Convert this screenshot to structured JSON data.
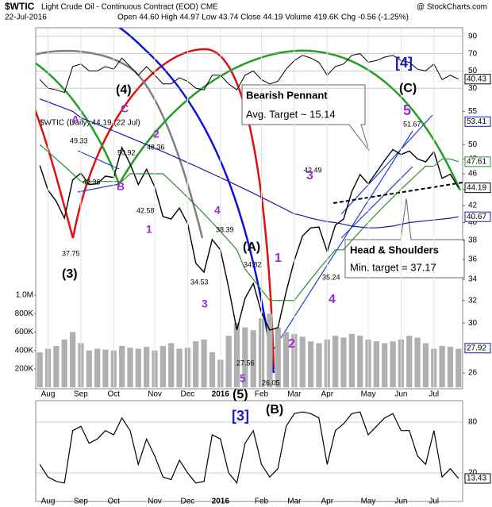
{
  "header": {
    "symbol": "$WTIC",
    "title": "Light Crude Oil - Continuous Contract (EOD) CME",
    "date": "22-Jul-2016",
    "stats": "Open 44.60 High 44.97 Low 43.74 Close 44.19 Volume 419.6K Chg -0.56 (-1.25%)",
    "credit": "@ StockCharts.com",
    "legend": "$WTIC (Daily) 44.19 (22 Jul)"
  },
  "chart_data": {
    "type": "line",
    "log_scale": true,
    "categories": [
      null,
      "Aug",
      null,
      null,
      null,
      "Sep",
      null,
      null,
      null,
      "Oct",
      null,
      null,
      null,
      null,
      "Nov",
      null,
      null,
      null,
      "Dec",
      null,
      null,
      null,
      "2016",
      null,
      null,
      null,
      null,
      "Feb",
      null,
      null,
      null,
      "Mar",
      null,
      null,
      null,
      "Apr",
      null,
      null,
      null,
      null,
      "May",
      null,
      null,
      null,
      "Jun",
      null,
      null,
      null,
      "Jul",
      null,
      null,
      null
    ],
    "series": [
      {
        "color": "#000000",
        "values": [
          47.1,
          43.9,
          42.5,
          40.5,
          45.2,
          46.1,
          44.6,
          44.7,
          45.7,
          45.5,
          49.6,
          47.3,
          44.6,
          46.6,
          44.3,
          40.7,
          40.4,
          41.7,
          39.9,
          35.6,
          34.7,
          38.1,
          37.0,
          33.2,
          29.4,
          32.2,
          33.6,
          30.9,
          29.4,
          29.6,
          32.8,
          35.9,
          38.5,
          39.4,
          39.5,
          36.8,
          39.7,
          40.4,
          43.7,
          45.9,
          44.7,
          46.2,
          47.8,
          49.3,
          48.6,
          49.1,
          48.0,
          47.6,
          49.0,
          45.4,
          45.95,
          44.19
        ]
      },
      {
        "color": "#2e8b2e",
        "values": [
          50,
          49,
          48,
          47,
          46,
          45,
          45,
          45,
          45,
          45,
          45,
          46,
          46,
          46,
          46,
          46,
          45,
          44,
          43,
          42,
          41,
          40,
          39,
          38,
          37,
          35,
          34,
          33,
          32,
          32,
          32,
          32,
          33,
          34,
          35,
          36,
          37,
          37,
          38,
          39,
          40,
          41,
          42,
          43,
          44,
          45,
          46,
          47,
          47,
          48,
          48,
          47.61
        ]
      },
      {
        "color": "#1a1aa6",
        "values": [
          57,
          56.5,
          56,
          55.5,
          55,
          54,
          53.5,
          53,
          52.5,
          52,
          51.5,
          51,
          50.5,
          50,
          49.5,
          49,
          48.5,
          48,
          47.5,
          47,
          46.5,
          46,
          45.5,
          45,
          44.5,
          44,
          43.5,
          43,
          42.5,
          42,
          41.5,
          41,
          40.8,
          40.5,
          40.3,
          40.1,
          40,
          39.8,
          39.6,
          39.5,
          39.4,
          39.4,
          39.5,
          39.6,
          39.8,
          40,
          40.1,
          40.2,
          40.3,
          40.4,
          40.5,
          40.67
        ]
      }
    ],
    "ylim": [
      24.85,
      69.88
    ],
    "yticks": [
      26,
      30,
      32,
      34,
      36,
      38,
      40,
      42,
      44,
      46,
      48,
      50,
      55
    ],
    "markers": [
      {
        "value": 53.41,
        "color": "#1a1aa6"
      },
      {
        "value": 47.61,
        "color": "#2e8b2e"
      },
      {
        "value": 44.19,
        "color": "#000000"
      },
      {
        "value": 40.67,
        "color": "#1a1aa6"
      },
      {
        "value": 27.92,
        "color": "#1a1aa6"
      }
    ],
    "volume": {
      "color": "#b0b0b0",
      "values": [
        380000,
        420000,
        450000,
        520000,
        600000,
        480000,
        400000,
        420000,
        410000,
        400000,
        450000,
        430000,
        420000,
        440000,
        400000,
        450000,
        480000,
        420000,
        430000,
        500000,
        520000,
        380000,
        300000,
        560000,
        700000,
        650000,
        620000,
        750000,
        800000,
        650000,
        600000,
        580000,
        550000,
        500000,
        480000,
        520000,
        560000,
        540000,
        580000,
        560000,
        520000,
        500000,
        480000,
        500000,
        520000,
        560000,
        540000,
        480000,
        420000,
        450000,
        440000,
        419600
      ],
      "ylim": [
        -15000,
        3900000
      ],
      "yticks": [
        {
          "value": 200000,
          "label": "200K"
        },
        {
          "value": 400000,
          "label": "400K"
        },
        {
          "value": 600000,
          "label": "600K"
        },
        {
          "value": 800000,
          "label": "800K"
        },
        {
          "value": 1000000,
          "label": "1.0M"
        }
      ]
    },
    "rsi": {
      "color": "#000000",
      "values": [
        40,
        30,
        28,
        25,
        55,
        58,
        50,
        50,
        55,
        52,
        65,
        55,
        45,
        55,
        45,
        35,
        35,
        42,
        38,
        30,
        28,
        45,
        45,
        35,
        28,
        45,
        50,
        40,
        35,
        38,
        52,
        62,
        68,
        65,
        60,
        45,
        55,
        58,
        68,
        70,
        60,
        62,
        66,
        68,
        62,
        60,
        52,
        50,
        58,
        40,
        45,
        40.43
      ],
      "ylim": [
        20,
        100
      ],
      "yticks": [
        30,
        50,
        70,
        90
      ],
      "marker": 40.43
    },
    "oscillator": {
      "color": "#000000",
      "values": [
        30,
        15,
        10,
        8,
        70,
        75,
        55,
        60,
        70,
        65,
        85,
        70,
        30,
        60,
        40,
        15,
        12,
        35,
        20,
        8,
        10,
        65,
        60,
        20,
        8,
        55,
        70,
        30,
        15,
        25,
        75,
        90,
        92,
        90,
        85,
        30,
        70,
        78,
        90,
        92,
        65,
        75,
        85,
        90,
        70,
        70,
        40,
        30,
        70,
        15,
        25,
        13.43
      ],
      "ylim": [
        -13.75,
        105.3
      ],
      "yticks": [
        20,
        80
      ],
      "marker": 13.43
    },
    "annotations": [
      "Bearish Pennant",
      "Avg. Target ~ 15.14",
      "Head & Shoulders",
      "Min. target = 37.17",
      "49.33",
      "43.36",
      "50.92",
      "48.36",
      "42.58",
      "37.75",
      "38.39",
      "34.53",
      "34.82",
      "27.56",
      "26.05",
      "35.24",
      "42.49",
      "51.67",
      "(3)",
      "(4)",
      "C",
      "A",
      "B",
      "2",
      "1",
      "4",
      "3",
      "(A)",
      "1",
      "2",
      "3",
      "4",
      "5",
      "5",
      "(C)",
      "[4]",
      "(5)",
      "[3]",
      "(B)"
    ]
  }
}
